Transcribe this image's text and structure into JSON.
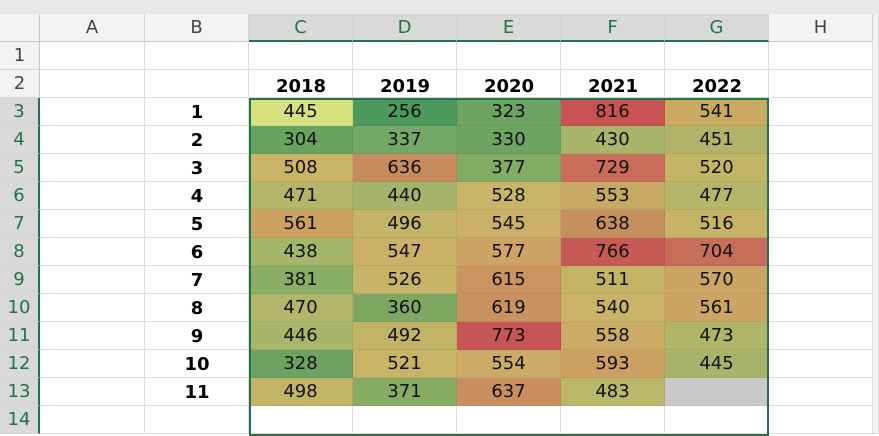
{
  "columns": [
    "A",
    "B",
    "C",
    "D",
    "E",
    "F",
    "G",
    "H"
  ],
  "rows": [
    1,
    2,
    3,
    4,
    5,
    6,
    7,
    8,
    9,
    10,
    11,
    12,
    13,
    14
  ],
  "year_headers": [
    2018,
    2019,
    2020,
    2021,
    2022
  ],
  "index_labels": [
    1,
    2,
    3,
    4,
    5,
    6,
    7,
    8,
    9,
    10,
    11
  ],
  "values": [
    [
      445,
      256,
      323,
      816,
      541
    ],
    [
      304,
      337,
      330,
      430,
      451
    ],
    [
      508,
      636,
      377,
      729,
      520
    ],
    [
      471,
      440,
      528,
      553,
      477
    ],
    [
      561,
      496,
      545,
      638,
      516
    ],
    [
      438,
      547,
      577,
      766,
      704
    ],
    [
      381,
      526,
      615,
      511,
      570
    ],
    [
      470,
      360,
      619,
      540,
      561
    ],
    [
      446,
      492,
      773,
      558,
      473
    ],
    [
      328,
      521,
      554,
      593,
      445
    ],
    [
      498,
      371,
      637,
      483,
      null
    ]
  ],
  "fills": [
    [
      "#d9e080",
      "#4e9a5e",
      "#6ea463",
      "#c85352",
      "#c9aa60"
    ],
    [
      "#68a460",
      "#74a866",
      "#6ea463",
      "#a7b66b",
      "#b2b36a"
    ],
    [
      "#c9b565",
      "#c68c5e",
      "#82ab64",
      "#c96c5a",
      "#c4b466"
    ],
    [
      "#b5b56a",
      "#a5b46a",
      "#cab468",
      "#c6aa63",
      "#b5b56a"
    ],
    [
      "#cda261",
      "#c3b467",
      "#cab068",
      "#c58f60",
      "#c6b366"
    ],
    [
      "#a5b56a",
      "#cbb068",
      "#cda465",
      "#c65a55",
      "#c76e5a"
    ],
    [
      "#8aae66",
      "#c6b368",
      "#c99460",
      "#c3b465",
      "#cba563"
    ],
    [
      "#b3b56a",
      "#7ea862",
      "#c99260",
      "#cab368",
      "#cca564"
    ],
    [
      "#a8b56a",
      "#c1b467",
      "#c65555",
      "#cbac66",
      "#b1b56a"
    ],
    [
      "#6da263",
      "#c8b367",
      "#cbac66",
      "#cba062",
      "#a6b56b"
    ],
    [
      "#c2b467",
      "#88ab64",
      "#c98f60",
      "#bab66a",
      "#c9c9c9"
    ]
  ]
}
